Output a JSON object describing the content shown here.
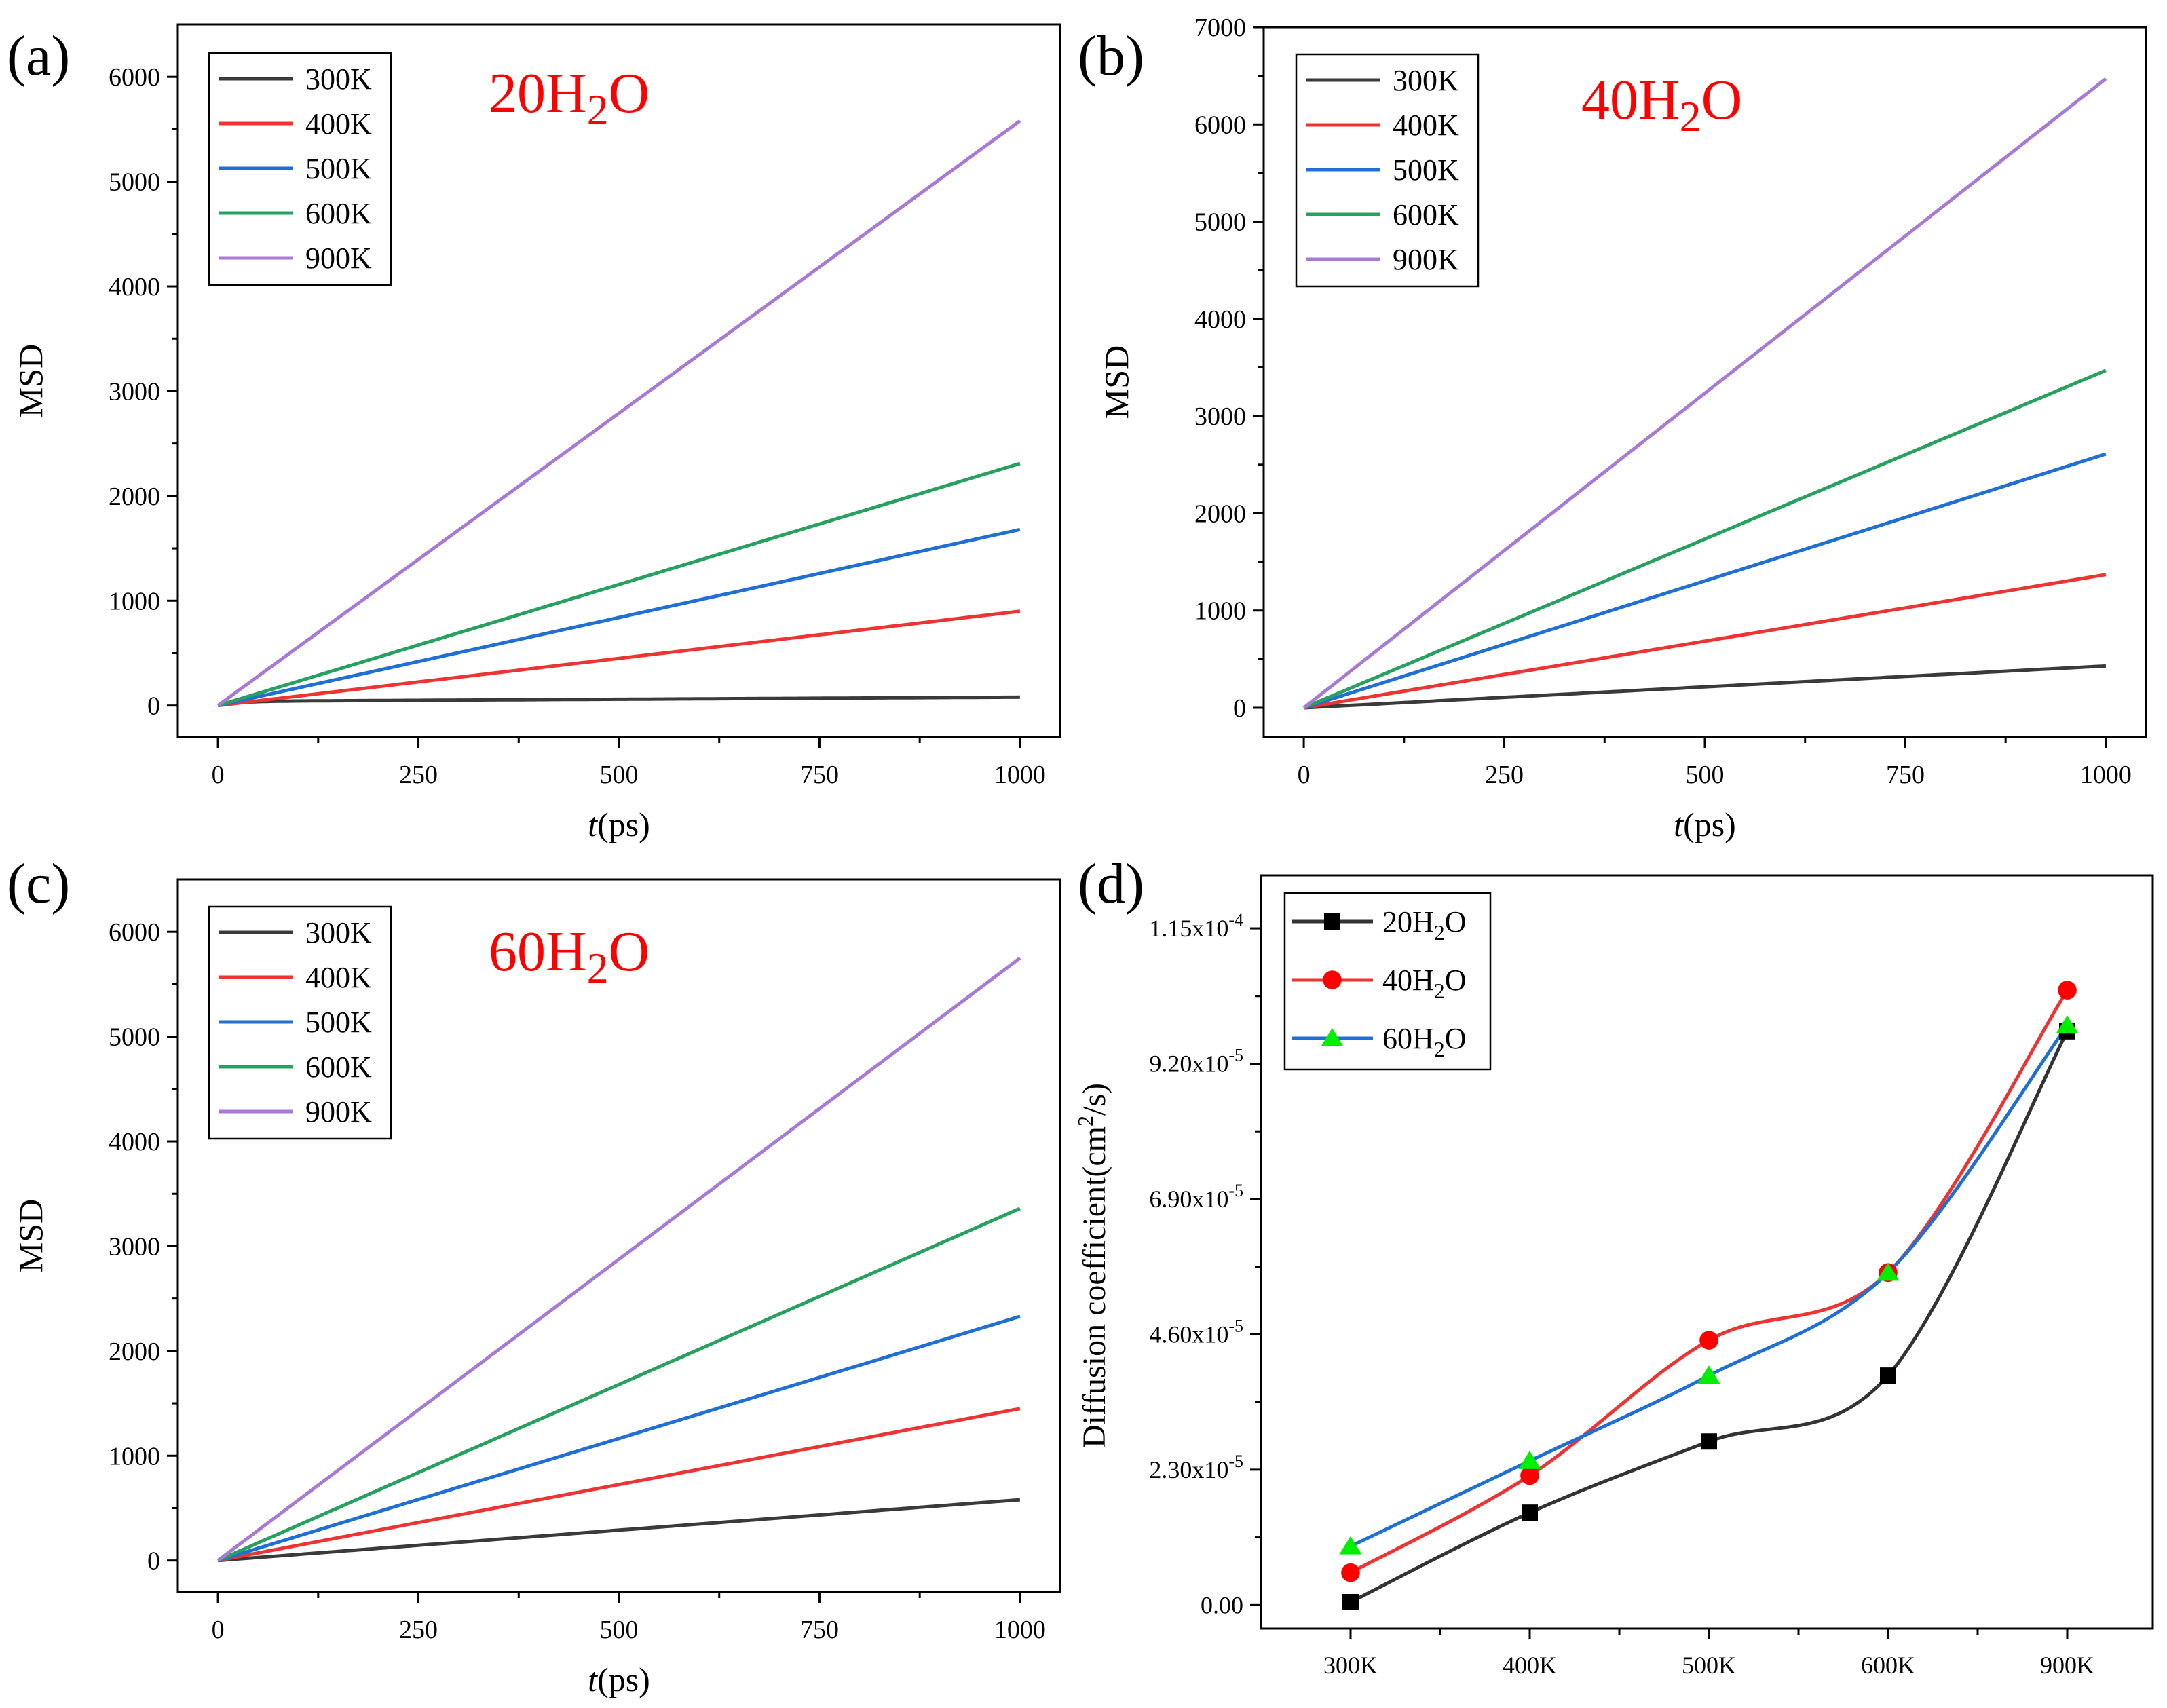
{
  "figure": {
    "colors": {
      "300K": "#3a3a3a",
      "400K": "#ee3333",
      "500K": "#1f6fd6",
      "600K": "#27a060",
      "900K": "#a77ad6",
      "20H2O": "#000000",
      "40H2O": "#ff0000",
      "60H2O": "#00ee00",
      "60H2O_line": "#1f6fd6",
      "annotation": "#ff0000"
    }
  },
  "chart_data": [
    {
      "panel": "(a)",
      "type": "line",
      "annotation": {
        "pre": "20H",
        "sub": "2",
        "post": "O"
      },
      "xlabel": {
        "italic": "t",
        "rest": "(ps)"
      },
      "ylabel": "MSD",
      "xlim": [
        -50,
        1050
      ],
      "ylim": [
        -300,
        6500
      ],
      "xticks": [
        0,
        250,
        500,
        750,
        1000
      ],
      "yticks": [
        0,
        1000,
        2000,
        3000,
        4000,
        5000,
        6000
      ],
      "legend_position": "top-left",
      "series": [
        {
          "name": "300K",
          "color": "#3a3a3a",
          "end": 80,
          "early": 40
        },
        {
          "name": "400K",
          "color": "#ee3333",
          "end": 900,
          "early": 0
        },
        {
          "name": "500K",
          "color": "#1f6fd6",
          "end": 1680,
          "early": 0
        },
        {
          "name": "600K",
          "color": "#27a060",
          "end": 2310,
          "early": 0
        },
        {
          "name": "900K",
          "color": "#a77ad6",
          "end": 5580,
          "early": 0
        }
      ]
    },
    {
      "panel": "(b)",
      "type": "line",
      "annotation": {
        "pre": "40H",
        "sub": "2",
        "post": "O"
      },
      "xlabel": {
        "italic": "t",
        "rest": "(ps)"
      },
      "ylabel": "MSD",
      "xlim": [
        -50,
        1050
      ],
      "ylim": [
        -300,
        7000
      ],
      "xticks": [
        0,
        250,
        500,
        750,
        1000
      ],
      "yticks": [
        0,
        1000,
        2000,
        3000,
        4000,
        5000,
        6000,
        7000
      ],
      "legend_position": "top-left",
      "series": [
        {
          "name": "300K",
          "color": "#3a3a3a",
          "end": 430,
          "early": 0
        },
        {
          "name": "400K",
          "color": "#ee3333",
          "end": 1370,
          "early": 0
        },
        {
          "name": "500K",
          "color": "#1f6fd6",
          "end": 2610,
          "early": 0
        },
        {
          "name": "600K",
          "color": "#27a060",
          "end": 3470,
          "early": 0
        },
        {
          "name": "900K",
          "color": "#a77ad6",
          "end": 6470,
          "early": 0
        }
      ]
    },
    {
      "panel": "(c)",
      "type": "line",
      "annotation": {
        "pre": "60H",
        "sub": "2",
        "post": "O"
      },
      "xlabel": {
        "italic": "t",
        "rest": "(ps)"
      },
      "ylabel": "MSD",
      "xlim": [
        -50,
        1050
      ],
      "ylim": [
        -300,
        6500
      ],
      "xticks": [
        0,
        250,
        500,
        750,
        1000
      ],
      "yticks": [
        0,
        1000,
        2000,
        3000,
        4000,
        5000,
        6000
      ],
      "legend_position": "top-left",
      "series": [
        {
          "name": "300K",
          "color": "#3a3a3a",
          "end": 580,
          "early": 0
        },
        {
          "name": "400K",
          "color": "#ee3333",
          "end": 1450,
          "early": 0
        },
        {
          "name": "500K",
          "color": "#1f6fd6",
          "end": 2330,
          "early": 0
        },
        {
          "name": "600K",
          "color": "#27a060",
          "end": 3360,
          "early": 0
        },
        {
          "name": "900K",
          "color": "#a77ad6",
          "end": 5750,
          "early": 0
        }
      ]
    },
    {
      "panel": "(d)",
      "type": "line",
      "ylabel": {
        "pre": "Diffusion coefficient(cm",
        "sup": "2",
        "post": "/s)"
      },
      "categories": [
        "300K",
        "400K",
        "500K",
        "600K",
        "900K"
      ],
      "ylim": [
        -4e-06,
        0.000124
      ],
      "yticks": [
        {
          "value": 0,
          "label": "0.00"
        },
        {
          "value": 2.3e-05,
          "mant": "2.30x10",
          "exp": "-5"
        },
        {
          "value": 4.6e-05,
          "mant": "4.60x10",
          "exp": "-5"
        },
        {
          "value": 6.9e-05,
          "mant": "6.90x10",
          "exp": "-5"
        },
        {
          "value": 9.2e-05,
          "mant": "9.20x10",
          "exp": "-5"
        },
        {
          "value": 0.000115,
          "mant": "1.15x10",
          "exp": "-4"
        }
      ],
      "legend_position": "top-left",
      "series": [
        {
          "name": {
            "pre": "20H",
            "sub": "2",
            "post": "O"
          },
          "marker": "square",
          "color": "#000000",
          "line": "#333333",
          "values": [
            5e-07,
            1.57e-05,
            2.78e-05,
            3.9e-05,
            9.75e-05
          ]
        },
        {
          "name": {
            "pre": "40H",
            "sub": "2",
            "post": "O"
          },
          "marker": "circle",
          "color": "#ff0000",
          "line": "#ee3333",
          "values": [
            5.5e-06,
            2.2e-05,
            4.5e-05,
            5.65e-05,
            0.0001045
          ]
        },
        {
          "name": {
            "pre": "60H",
            "sub": "2",
            "post": "O"
          },
          "marker": "triangle",
          "color": "#00ee00",
          "line": "#1f6fd6",
          "values": [
            1e-05,
            2.45e-05,
            3.9e-05,
            5.65e-05,
            9.85e-05
          ]
        }
      ]
    }
  ]
}
